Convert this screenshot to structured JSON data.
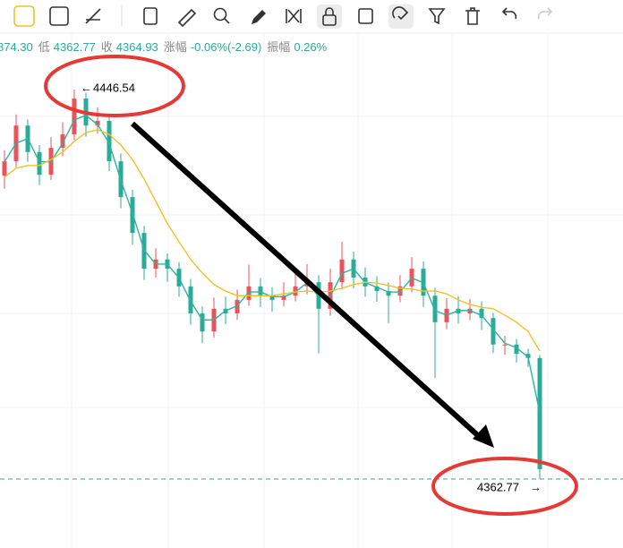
{
  "header": {
    "items": [
      {
        "value": "874.30"
      },
      {
        "label": "低",
        "value": "4362.77"
      },
      {
        "label": "收",
        "value": "4364.93"
      },
      {
        "label": "涨幅",
        "value": "-0.06%(-2.69)"
      },
      {
        "label": "振幅",
        "value": "0.26%"
      }
    ]
  },
  "chart_data": {
    "type": "candlestick",
    "up_color": "#e8545a",
    "down_color": "#2bab97",
    "high_marker": 4446.54,
    "low_marker": 4362.77,
    "categories": [
      null,
      null,
      null,
      null,
      null,
      null,
      null,
      null,
      null,
      null,
      null,
      null,
      null,
      null,
      null,
      null,
      null,
      null,
      null,
      null,
      null,
      null,
      null,
      null,
      null,
      null,
      null,
      null,
      null,
      null,
      null,
      null,
      null,
      null,
      null,
      null,
      null,
      null,
      null,
      null,
      null,
      null,
      null,
      null,
      null,
      null,
      null
    ],
    "open": [
      4428.0,
      4431.1,
      4438.8,
      4433.1,
      4428.2,
      4434.0,
      4436.9,
      4444.6,
      4438.8,
      4439.8,
      4431.1,
      4423.4,
      4415.7,
      4408.0,
      4410.0,
      4408.0,
      4404.2,
      4398.4,
      4394.5,
      4399.4,
      4398.4,
      4401.3,
      4404.2,
      4402.2,
      4401.3,
      4402.2,
      4404.2,
      4405.1,
      4399.4,
      4405.1,
      4410.0,
      4406.1,
      4404.2,
      4403.2,
      4402.2,
      4404.2,
      4408.0,
      4402.2,
      4396.5,
      4399.4,
      4398.4,
      4399.4,
      4397.4,
      4391.7,
      4391.7,
      4389.7,
      4388.8
    ],
    "high": [
      4433.5,
      4441.2,
      4440.1,
      4434.6,
      4436.3,
      4439.5,
      4446.54,
      4445.9,
      4442.7,
      4441.1,
      4432.8,
      4425.0,
      4417.2,
      4412.4,
      4411.3,
      4409.4,
      4405.8,
      4399.9,
      4401.8,
      4402.0,
      4403.5,
      4408.9,
      4406.0,
      4404.0,
      4405.1,
      4407.4,
      4409.0,
      4406.6,
      4408.0,
      4413.8,
      4411.7,
      4408.3,
      4406.4,
      4405.0,
      4406.6,
      4410.5,
      4409.6,
      4403.9,
      4401.7,
      4402.1,
      4401.5,
      4401.0,
      4398.5,
      4393.6,
      4392.9,
      4390.8,
      4389.5
    ],
    "low": [
      4425.2,
      4429.8,
      4431.0,
      4426.0,
      4427.1,
      4432.2,
      4435.7,
      4436.4,
      4437.0,
      4429.0,
      4421.0,
      4413.1,
      4405.6,
      4406.1,
      4405.2,
      4402.0,
      4396.0,
      4392.0,
      4393.2,
      4396.1,
      4397.0,
      4400.0,
      4399.8,
      4398.7,
      4399.9,
      4401.0,
      4402.5,
      4389.8,
      4397.9,
      4403.6,
      4403.8,
      4402.0,
      4400.9,
      4396.3,
      4400.8,
      4402.9,
      4399.8,
      4384.5,
      4395.0,
      4396.2,
      4396.9,
      4394.8,
      4389.9,
      4389.5,
      4387.8,
      4386.9,
      4362.77
    ],
    "close": [
      4431.1,
      4438.8,
      4433.1,
      4428.2,
      4434.0,
      4436.9,
      4444.6,
      4438.8,
      4439.8,
      4431.1,
      4423.4,
      4415.7,
      4408.0,
      4410.0,
      4408.0,
      4404.2,
      4398.4,
      4394.5,
      4399.4,
      4398.4,
      4401.3,
      4404.2,
      4402.2,
      4401.3,
      4402.2,
      4404.2,
      4405.1,
      4399.4,
      4405.1,
      4410.0,
      4406.1,
      4404.2,
      4403.2,
      4402.2,
      4404.2,
      4408.0,
      4402.2,
      4396.5,
      4399.4,
      4398.4,
      4399.4,
      4397.4,
      4391.7,
      4391.7,
      4389.7,
      4388.8,
      4364.9
    ],
    "lines": [
      {
        "color": "#2bb5a0",
        "values": [
          4431,
          4435,
          4436,
          4431,
          4431,
          4435,
          4440,
          4441,
          4439,
          4435,
          4427,
          4420,
          4412,
          4409,
          4409,
          4406,
          4401,
          4397,
          4397,
          4399,
          4400,
          4403,
          4403,
          4402,
          4402,
          4403,
          4405,
          4402,
          4402,
          4407,
          4408,
          4405,
          4404,
          4403,
          4403,
          4406,
          4405,
          4399,
          4398,
          4399,
          4399,
          4398,
          4395,
          4392,
          4391,
          4389,
          4377
        ]
      },
      {
        "color": "#f0c02a",
        "values": [
          4427.7,
          4429.6,
          4430.2,
          4430.2,
          4431.5,
          4433.1,
          4435.4,
          4437.3,
          4437.9,
          4436.9,
          4434.6,
          4431.5,
          4427.3,
          4422.5,
          4417.7,
          4413.8,
          4410.0,
          4407.1,
          4404.6,
          4403.2,
          4402.2,
          4402.2,
          4402.2,
          4402.2,
          4402.6,
          4403.0,
          4403.2,
          4403.0,
          4403.2,
          4403.8,
          4404.6,
          4405.1,
          4404.9,
          4404.4,
          4403.8,
          4403.6,
          4403.2,
          4403.2,
          4402.6,
          4401.3,
          4400.3,
          4399.7,
          4399.4,
          4398.0,
          4396.5,
          4394.5,
          4390.3
        ]
      }
    ]
  }
}
